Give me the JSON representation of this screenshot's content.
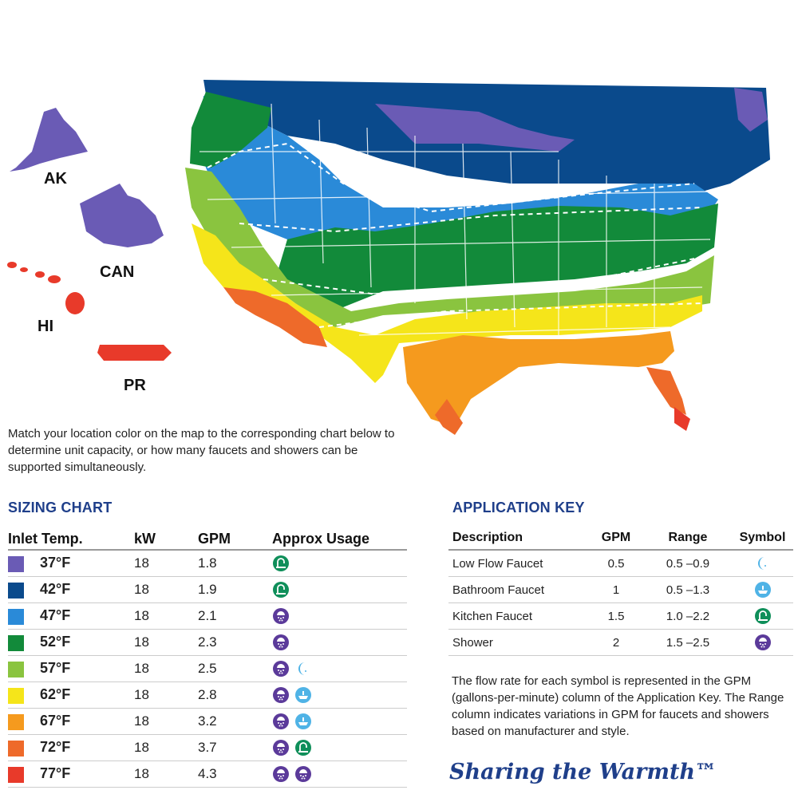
{
  "map": {
    "labels": {
      "ak": "AK",
      "can": "CAN",
      "hi": "HI",
      "pr": "PR"
    }
  },
  "intro": "Match your location color on the map to the corresponding chart below to determine unit capacity, or how many faucets and showers can be supported simultaneously.",
  "sizing_chart": {
    "title": "SIZING CHART",
    "headers": {
      "temp": "Inlet Temp.",
      "kw": "kW",
      "gpm": "GPM",
      "usage": "Approx Usage"
    },
    "rows": [
      {
        "color": "#6a5bb5",
        "temp": "37°F",
        "kw": "18",
        "gpm": "1.8",
        "icons": [
          "kitchen-faucet"
        ]
      },
      {
        "color": "#0a4a8c",
        "temp": "42°F",
        "kw": "18",
        "gpm": "1.9",
        "icons": [
          "kitchen-faucet"
        ]
      },
      {
        "color": "#2a8ad8",
        "temp": "47°F",
        "kw": "18",
        "gpm": "2.1",
        "icons": [
          "shower"
        ]
      },
      {
        "color": "#128a3a",
        "temp": "52°F",
        "kw": "18",
        "gpm": "2.3",
        "icons": [
          "shower"
        ]
      },
      {
        "color": "#8ac43f",
        "temp": "57°F",
        "kw": "18",
        "gpm": "2.5",
        "icons": [
          "shower",
          "low-flow-faucet"
        ]
      },
      {
        "color": "#f5e51a",
        "temp": "62°F",
        "kw": "18",
        "gpm": "2.8",
        "icons": [
          "shower",
          "bathroom-faucet"
        ]
      },
      {
        "color": "#f59a1e",
        "temp": "67°F",
        "kw": "18",
        "gpm": "3.2",
        "icons": [
          "shower",
          "bathroom-faucet"
        ]
      },
      {
        "color": "#ee6a2a",
        "temp": "72°F",
        "kw": "18",
        "gpm": "3.7",
        "icons": [
          "shower",
          "kitchen-faucet"
        ]
      },
      {
        "color": "#e83a2a",
        "temp": "77°F",
        "kw": "18",
        "gpm": "4.3",
        "icons": [
          "shower",
          "shower"
        ]
      }
    ]
  },
  "application_key": {
    "title": "APPLICATION KEY",
    "headers": {
      "description": "Description",
      "gpm": "GPM",
      "range": "Range",
      "symbol": "Symbol"
    },
    "rows": [
      {
        "description": "Low Flow Faucet",
        "gpm": "0.5",
        "range": "0.5 –0.9",
        "icon": "low-flow-faucet"
      },
      {
        "description": "Bathroom Faucet",
        "gpm": "1",
        "range": "0.5 –1.3",
        "icon": "bathroom-faucet"
      },
      {
        "description": "Kitchen Faucet",
        "gpm": "1.5",
        "range": "1.0 –2.2",
        "icon": "kitchen-faucet"
      },
      {
        "description": "Shower",
        "gpm": "2",
        "range": "1.5 –2.5",
        "icon": "shower"
      }
    ],
    "note": "The flow rate for each symbol is represented in the GPM (gallons-per-minute) column of the Application Key. The Range column indicates variations in GPM for faucets and showers based on manufacturer and style."
  },
  "tagline": "Sharing the Warmth™",
  "colors": {
    "purple": "#6a5bb5",
    "navy": "#0a4a8c",
    "blue": "#2a8ad8",
    "green": "#128a3a",
    "lightgreen": "#8ac43f",
    "yellow": "#f5e51a",
    "orange": "#f59a1e",
    "darkorange": "#ee6a2a",
    "red": "#e83a2a",
    "heading": "#1f3f8a"
  }
}
